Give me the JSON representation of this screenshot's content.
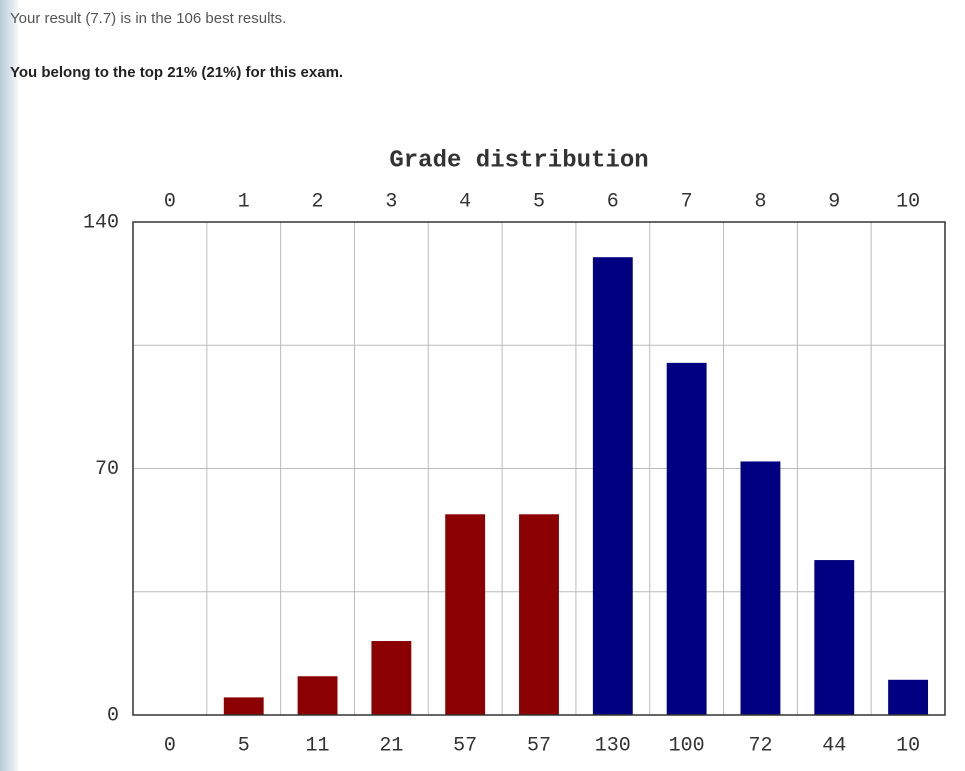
{
  "header": {
    "result_text": "Your result (7.7) is in the 106 best results.",
    "rank_text": "You belong to the top 21% (21%) for this exam."
  },
  "chart_data": {
    "type": "bar",
    "title": "Grade distribution",
    "categories": [
      "0",
      "1",
      "2",
      "3",
      "4",
      "5",
      "6",
      "7",
      "8",
      "9",
      "10"
    ],
    "values": [
      0,
      5,
      11,
      21,
      57,
      57,
      130,
      100,
      72,
      44,
      10
    ],
    "colors": [
      "#8b0000",
      "#8b0000",
      "#8b0000",
      "#8b0000",
      "#8b0000",
      "#8b0000",
      "#000080",
      "#000080",
      "#000080",
      "#000080",
      "#000080"
    ],
    "ylim": [
      0,
      140
    ],
    "yticks": [
      0,
      70,
      140
    ],
    "minor_yticks": [
      35,
      105
    ],
    "grid": true
  }
}
